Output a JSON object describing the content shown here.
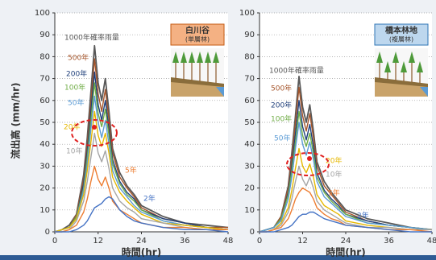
{
  "chart_data": [
    {
      "type": "line",
      "ylabel": "流出高 (mm/hr)",
      "xlabel": "時間(hr)",
      "inset_title": "白川谷",
      "inset_subtitle": "(単層林)",
      "xlim": [
        0,
        48
      ],
      "ylim": [
        0,
        100
      ],
      "xticks": [
        0,
        12,
        24,
        36,
        48
      ],
      "yticks": [
        0,
        10,
        20,
        30,
        40,
        50,
        60,
        70,
        80,
        90,
        100
      ],
      "grid": true,
      "x": [
        0,
        2,
        4,
        6,
        8,
        9,
        10,
        11,
        12,
        13,
        14,
        15,
        16,
        18,
        20,
        22,
        24,
        30,
        36,
        42,
        48
      ],
      "series": [
        {
          "name": "1000年確率雨量",
          "color": "#595959",
          "values": [
            0,
            1,
            3,
            8,
            26,
            43,
            64,
            85,
            68,
            60,
            70,
            55,
            38,
            27,
            21,
            17,
            12,
            7,
            4,
            3,
            2
          ]
        },
        {
          "name": "500年",
          "color": "#a5552b",
          "values": [
            0,
            1,
            2,
            8,
            24,
            40,
            59,
            79,
            63,
            55,
            65,
            51,
            36,
            25,
            20,
            16,
            11,
            6,
            4,
            2,
            2
          ]
        },
        {
          "name": "200年",
          "color": "#1f3f7a",
          "values": [
            0,
            1,
            2,
            7,
            22,
            37,
            55,
            73,
            58,
            51,
            60,
            47,
            33,
            23,
            18,
            15,
            10,
            6,
            4,
            2,
            1
          ]
        },
        {
          "name": "100年",
          "color": "#70ad47",
          "values": [
            0,
            1,
            2,
            7,
            20,
            34,
            51,
            68,
            54,
            48,
            56,
            44,
            31,
            22,
            17,
            14,
            10,
            5,
            3,
            2,
            1
          ]
        },
        {
          "name": "50年",
          "color": "#5b9bd5",
          "values": [
            0,
            1,
            2,
            6,
            19,
            31,
            47,
            62,
            50,
            43,
            51,
            40,
            28,
            20,
            16,
            12,
            9,
            5,
            3,
            2,
            1
          ]
        },
        {
          "name": "20年",
          "color": "#e6b800",
          "values": [
            0,
            1,
            2,
            6,
            17,
            28,
            41,
            55,
            44,
            39,
            45,
            36,
            25,
            18,
            14,
            11,
            8,
            4,
            3,
            2,
            1
          ]
        },
        {
          "name": "10年",
          "color": "#a5a5a5",
          "values": [
            0,
            0,
            1,
            5,
            14,
            23,
            34,
            45,
            36,
            32,
            37,
            29,
            20,
            14,
            11,
            9,
            6,
            4,
            2,
            1,
            1
          ]
        },
        {
          "name": "5年",
          "color": "#ed7d31",
          "values": [
            0,
            0,
            1,
            3,
            9,
            15,
            23,
            30,
            24,
            21,
            25,
            20,
            14,
            10,
            8,
            6,
            4,
            2,
            2,
            1,
            1
          ]
        },
        {
          "name": "2年",
          "color": "#4472c4",
          "values": [
            0,
            0,
            0,
            1,
            3,
            5,
            8,
            11,
            12,
            13,
            15,
            16,
            15,
            10,
            7,
            5,
            4,
            2,
            1,
            1,
            0
          ]
        }
      ]
    },
    {
      "type": "line",
      "xlabel": "時間(hr)",
      "inset_title": "橋本林地",
      "inset_subtitle": "(複層林)",
      "xlim": [
        0,
        48
      ],
      "ylim": [
        0,
        100
      ],
      "xticks": [
        0,
        12,
        24,
        36,
        48
      ],
      "yticks": [
        0,
        10,
        20,
        30,
        40,
        50,
        60,
        70,
        80,
        90,
        100
      ],
      "grid": true,
      "x": [
        0,
        2,
        4,
        6,
        8,
        9,
        10,
        11,
        12,
        13,
        14,
        15,
        16,
        18,
        20,
        22,
        24,
        30,
        36,
        42,
        48
      ],
      "series": [
        {
          "name": "1000年確率雨量",
          "color": "#595959",
          "values": [
            0,
            1,
            2,
            7,
            21,
            36,
            53,
            71,
            57,
            50,
            58,
            46,
            32,
            23,
            18,
            14,
            10,
            6,
            4,
            2,
            1
          ]
        },
        {
          "name": "500年",
          "color": "#a5552b",
          "values": [
            0,
            1,
            2,
            7,
            20,
            33,
            50,
            66,
            53,
            46,
            54,
            43,
            30,
            21,
            17,
            13,
            9,
            5,
            3,
            2,
            1
          ]
        },
        {
          "name": "200年",
          "color": "#1f3f7a",
          "values": [
            0,
            1,
            2,
            6,
            18,
            30,
            45,
            60,
            48,
            42,
            49,
            39,
            27,
            19,
            15,
            12,
            8,
            5,
            3,
            2,
            1
          ]
        },
        {
          "name": "100年",
          "color": "#70ad47",
          "values": [
            0,
            1,
            2,
            6,
            17,
            28,
            41,
            55,
            44,
            39,
            45,
            36,
            25,
            18,
            14,
            11,
            8,
            4,
            3,
            2,
            1
          ]
        },
        {
          "name": "50年",
          "color": "#5b9bd5",
          "values": [
            0,
            1,
            2,
            5,
            15,
            25,
            38,
            50,
            40,
            35,
            41,
            33,
            23,
            16,
            13,
            10,
            7,
            4,
            3,
            2,
            1
          ]
        },
        {
          "name": "20年",
          "color": "#e6b800",
          "values": [
            0,
            0,
            1,
            4,
            11,
            19,
            29,
            38,
            30,
            27,
            31,
            25,
            17,
            12,
            10,
            8,
            5,
            3,
            2,
            1,
            1
          ]
        },
        {
          "name": "10年",
          "color": "#a5a5a5",
          "values": [
            0,
            0,
            1,
            3,
            9,
            15,
            23,
            30,
            24,
            21,
            25,
            20,
            14,
            10,
            8,
            6,
            4,
            2,
            2,
            1,
            1
          ]
        },
        {
          "name": "5年",
          "color": "#ed7d31",
          "values": [
            0,
            0,
            1,
            2,
            6,
            10,
            15,
            18,
            20,
            19,
            18,
            15,
            11,
            8,
            6,
            5,
            3,
            2,
            1,
            1,
            0
          ]
        },
        {
          "name": "2年",
          "color": "#4472c4",
          "values": [
            0,
            0,
            0,
            1,
            2,
            3,
            5,
            7,
            8,
            8,
            9,
            9,
            8,
            6,
            5,
            4,
            3,
            2,
            1,
            0,
            0
          ]
        }
      ]
    }
  ]
}
